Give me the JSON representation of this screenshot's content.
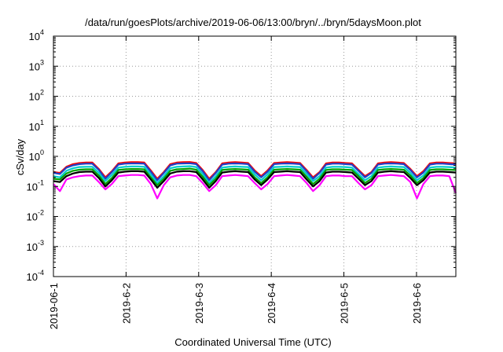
{
  "chart_data": {
    "type": "line",
    "title": "/data/run/goesPlots/archive/2019-06-06/13:00/bryn/../bryn/5daysMoon.plot",
    "xlabel": "Coordinated Universal Time (UTC)",
    "ylabel": "cSv/day",
    "yscale": "log",
    "ylim_exp": [
      -4,
      4
    ],
    "yticks": [
      {
        "base": "10",
        "exp": "-4",
        "value_exp": -4
      },
      {
        "base": "10",
        "exp": "-3",
        "value_exp": -3
      },
      {
        "base": "10",
        "exp": "-2",
        "value_exp": -2
      },
      {
        "base": "10",
        "exp": "-1",
        "value_exp": -1
      },
      {
        "base": "10",
        "exp": "0",
        "value_exp": 0
      },
      {
        "base": "10",
        "exp": "1",
        "value_exp": 1
      },
      {
        "base": "10",
        "exp": "2",
        "value_exp": 2
      },
      {
        "base": "10",
        "exp": "3",
        "value_exp": 3
      },
      {
        "base": "10",
        "exp": "4",
        "value_exp": 4
      }
    ],
    "xlim": [
      "2019-06-01",
      "2019-06-06T13:00"
    ],
    "xticks": [
      {
        "label": "2019-06-1",
        "date": "2019-06-01"
      },
      {
        "label": "2019-6-2",
        "date": "2019-06-02"
      },
      {
        "label": "2019-6-3",
        "date": "2019-06-03"
      },
      {
        "label": "2019-6-4",
        "date": "2019-06-04"
      },
      {
        "label": "2019-6-5",
        "date": "2019-06-05"
      },
      {
        "label": "2019-6-6",
        "date": "2019-06-06"
      }
    ],
    "grid": true,
    "series": [
      {
        "color": "#ff0000",
        "values": [
          0.3,
          0.28,
          0.45,
          0.55,
          0.6,
          0.62,
          0.62,
          0.38,
          0.2,
          0.32,
          0.58,
          0.62,
          0.64,
          0.64,
          0.62,
          0.34,
          0.18,
          0.3,
          0.55,
          0.62,
          0.64,
          0.65,
          0.6,
          0.35,
          0.18,
          0.3,
          0.58,
          0.62,
          0.64,
          0.62,
          0.6,
          0.34,
          0.22,
          0.34,
          0.6,
          0.62,
          0.64,
          0.62,
          0.6,
          0.35,
          0.2,
          0.3,
          0.58,
          0.62,
          0.62,
          0.6,
          0.58,
          0.36,
          0.22,
          0.3,
          0.58,
          0.62,
          0.64,
          0.62,
          0.6,
          0.38,
          0.22,
          0.32,
          0.58,
          0.62,
          0.62,
          0.6,
          0.58
        ]
      },
      {
        "color": "#1e40c8",
        "values": [
          0.28,
          0.26,
          0.42,
          0.5,
          0.55,
          0.57,
          0.57,
          0.35,
          0.18,
          0.3,
          0.53,
          0.57,
          0.58,
          0.58,
          0.57,
          0.31,
          0.16,
          0.28,
          0.5,
          0.57,
          0.58,
          0.59,
          0.55,
          0.32,
          0.16,
          0.28,
          0.53,
          0.57,
          0.58,
          0.57,
          0.55,
          0.31,
          0.2,
          0.31,
          0.55,
          0.57,
          0.58,
          0.57,
          0.55,
          0.32,
          0.18,
          0.28,
          0.53,
          0.57,
          0.57,
          0.55,
          0.53,
          0.33,
          0.2,
          0.28,
          0.53,
          0.57,
          0.58,
          0.57,
          0.55,
          0.35,
          0.2,
          0.29,
          0.53,
          0.57,
          0.57,
          0.55,
          0.53
        ]
      },
      {
        "color": "#00cccc",
        "values": [
          0.22,
          0.2,
          0.33,
          0.4,
          0.44,
          0.45,
          0.45,
          0.28,
          0.15,
          0.24,
          0.42,
          0.45,
          0.46,
          0.46,
          0.45,
          0.25,
          0.13,
          0.22,
          0.4,
          0.45,
          0.46,
          0.47,
          0.44,
          0.26,
          0.13,
          0.22,
          0.42,
          0.45,
          0.46,
          0.45,
          0.44,
          0.25,
          0.16,
          0.25,
          0.44,
          0.45,
          0.46,
          0.45,
          0.44,
          0.26,
          0.15,
          0.22,
          0.42,
          0.45,
          0.45,
          0.44,
          0.42,
          0.26,
          0.16,
          0.22,
          0.42,
          0.45,
          0.46,
          0.45,
          0.44,
          0.28,
          0.16,
          0.23,
          0.42,
          0.45,
          0.45,
          0.44,
          0.42
        ]
      },
      {
        "color": "#00a000",
        "values": [
          0.18,
          0.17,
          0.27,
          0.33,
          0.36,
          0.37,
          0.37,
          0.23,
          0.12,
          0.19,
          0.35,
          0.37,
          0.38,
          0.38,
          0.37,
          0.2,
          0.11,
          0.18,
          0.33,
          0.37,
          0.38,
          0.39,
          0.36,
          0.21,
          0.11,
          0.18,
          0.35,
          0.37,
          0.38,
          0.37,
          0.36,
          0.2,
          0.13,
          0.2,
          0.36,
          0.37,
          0.38,
          0.37,
          0.36,
          0.21,
          0.12,
          0.18,
          0.35,
          0.37,
          0.37,
          0.36,
          0.35,
          0.22,
          0.13,
          0.18,
          0.35,
          0.37,
          0.38,
          0.37,
          0.36,
          0.23,
          0.13,
          0.19,
          0.35,
          0.37,
          0.37,
          0.36,
          0.35
        ]
      },
      {
        "color": "#000000",
        "values": [
          0.15,
          0.14,
          0.22,
          0.27,
          0.3,
          0.31,
          0.31,
          0.19,
          0.1,
          0.16,
          0.29,
          0.31,
          0.32,
          0.32,
          0.31,
          0.17,
          0.09,
          0.15,
          0.27,
          0.31,
          0.32,
          0.32,
          0.3,
          0.17,
          0.09,
          0.15,
          0.29,
          0.31,
          0.32,
          0.31,
          0.3,
          0.17,
          0.11,
          0.17,
          0.3,
          0.31,
          0.32,
          0.31,
          0.3,
          0.17,
          0.1,
          0.15,
          0.29,
          0.31,
          0.31,
          0.3,
          0.29,
          0.18,
          0.11,
          0.15,
          0.29,
          0.31,
          0.32,
          0.31,
          0.3,
          0.19,
          0.11,
          0.16,
          0.29,
          0.31,
          0.31,
          0.3,
          0.29
        ]
      },
      {
        "color": "#ff00ff",
        "values": [
          0.12,
          0.07,
          0.17,
          0.2,
          0.22,
          0.23,
          0.23,
          0.14,
          0.08,
          0.12,
          0.22,
          0.23,
          0.24,
          0.24,
          0.23,
          0.12,
          0.04,
          0.11,
          0.2,
          0.23,
          0.24,
          0.24,
          0.22,
          0.13,
          0.07,
          0.11,
          0.22,
          0.23,
          0.24,
          0.23,
          0.22,
          0.13,
          0.08,
          0.12,
          0.22,
          0.23,
          0.24,
          0.23,
          0.22,
          0.13,
          0.07,
          0.11,
          0.22,
          0.23,
          0.23,
          0.22,
          0.22,
          0.13,
          0.08,
          0.11,
          0.22,
          0.23,
          0.24,
          0.23,
          0.22,
          0.14,
          0.04,
          0.12,
          0.22,
          0.23,
          0.23,
          0.22,
          0.06
        ]
      }
    ]
  }
}
